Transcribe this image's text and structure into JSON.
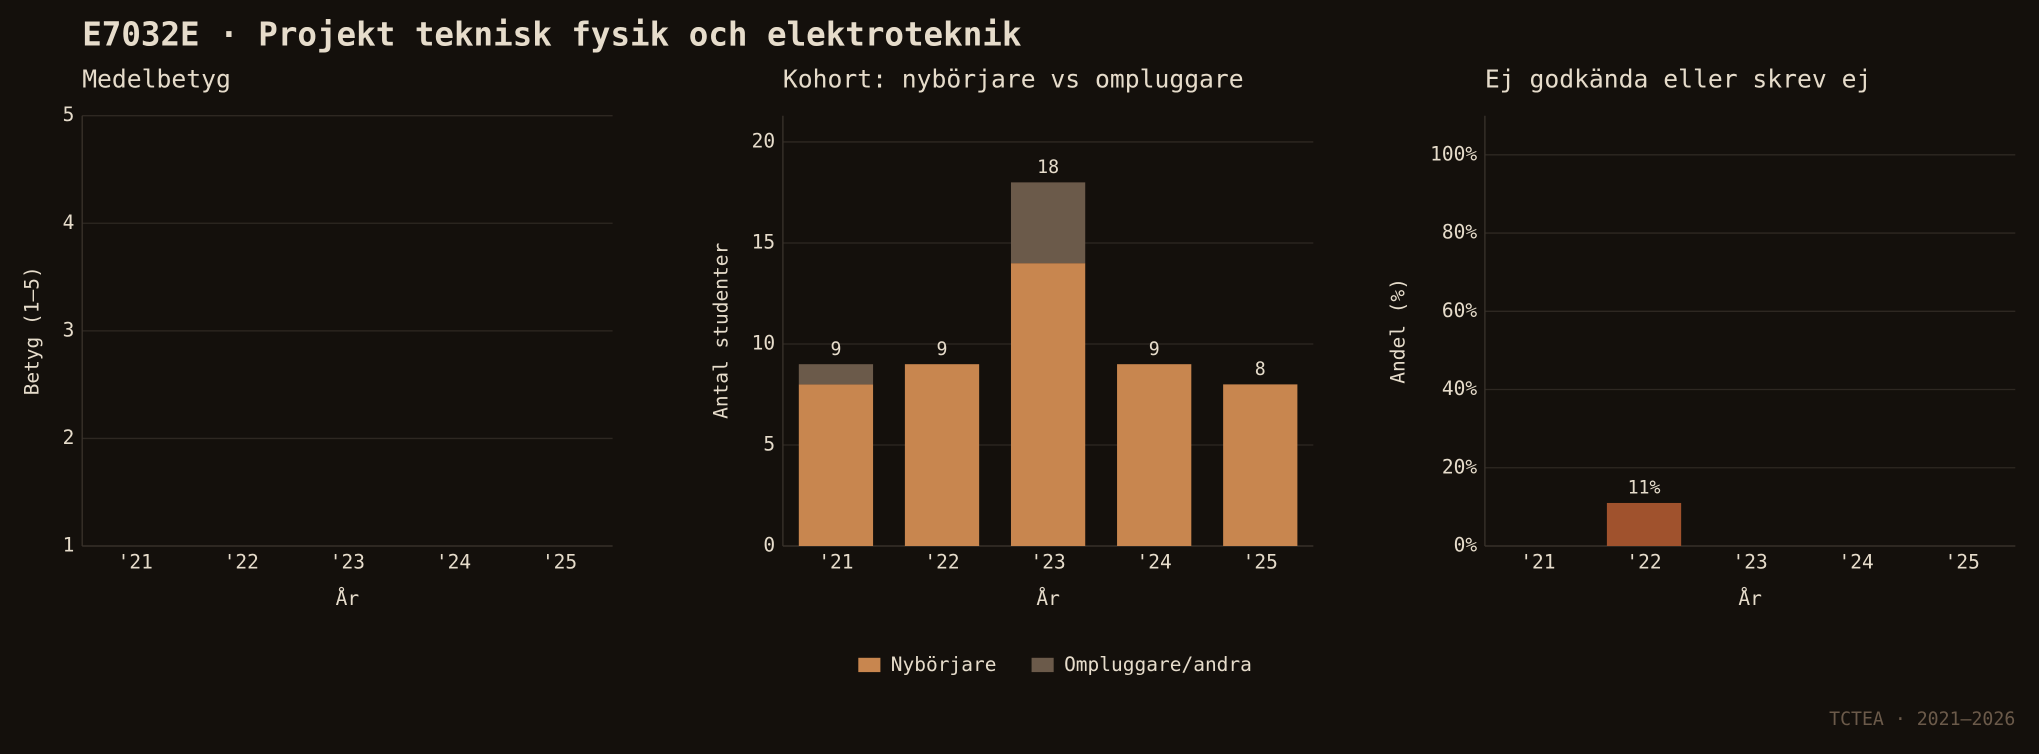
{
  "header": {
    "title": "E7032E · Projekt teknisk fysik och elektroteknik"
  },
  "footer": "TCTEA · 2021–2026",
  "chart_data": [
    {
      "type": "line",
      "title": "Medelbetyg",
      "xlabel": "År",
      "ylabel": "Betyg (1–5)",
      "categories": [
        "'21",
        "'22",
        "'23",
        "'24",
        "'25"
      ],
      "values": [
        null,
        null,
        null,
        null,
        null
      ],
      "color": "#c8864f",
      "ylim": [
        1,
        5
      ],
      "yticks": [
        1,
        2,
        3,
        4,
        5
      ],
      "grid": true
    },
    {
      "type": "stacked_bar",
      "title": "Kohort: nybörjare vs ompluggare",
      "xlabel": "År",
      "ylabel": "Antal studenter",
      "categories": [
        "'21",
        "'22",
        "'23",
        "'24",
        "'25"
      ],
      "series": [
        {
          "name": "Nybörjare",
          "color": "#c8864f",
          "values": [
            8,
            9,
            14,
            9,
            8
          ]
        },
        {
          "name": "Ompluggare/andra",
          "color": "#6b5a4a",
          "values": [
            1,
            0,
            4,
            0,
            0
          ]
        }
      ],
      "totals": [
        9,
        9,
        18,
        9,
        8
      ],
      "ylim": [
        0,
        21.3
      ],
      "yticks": [
        0,
        5,
        10,
        15,
        20
      ],
      "grid": true,
      "legend": "bottom"
    },
    {
      "type": "bar",
      "title": "Ej godkända eller skrev ej",
      "xlabel": "År",
      "ylabel": "Andel (%)",
      "categories": [
        "'21",
        "'22",
        "'23",
        "'24",
        "'25"
      ],
      "values": [
        null,
        11,
        null,
        null,
        null
      ],
      "value_labels": [
        null,
        "11%",
        null,
        null,
        null
      ],
      "color": "#a0522d",
      "ylim": [
        0,
        110
      ],
      "yticks": [
        {
          "value": 0,
          "label": "0%"
        },
        {
          "value": 20,
          "label": "20%"
        },
        {
          "value": 40,
          "label": "40%"
        },
        {
          "value": 60,
          "label": "60%"
        },
        {
          "value": 80,
          "label": "80%"
        },
        {
          "value": 100,
          "label": "100%"
        }
      ],
      "grid": true
    }
  ]
}
